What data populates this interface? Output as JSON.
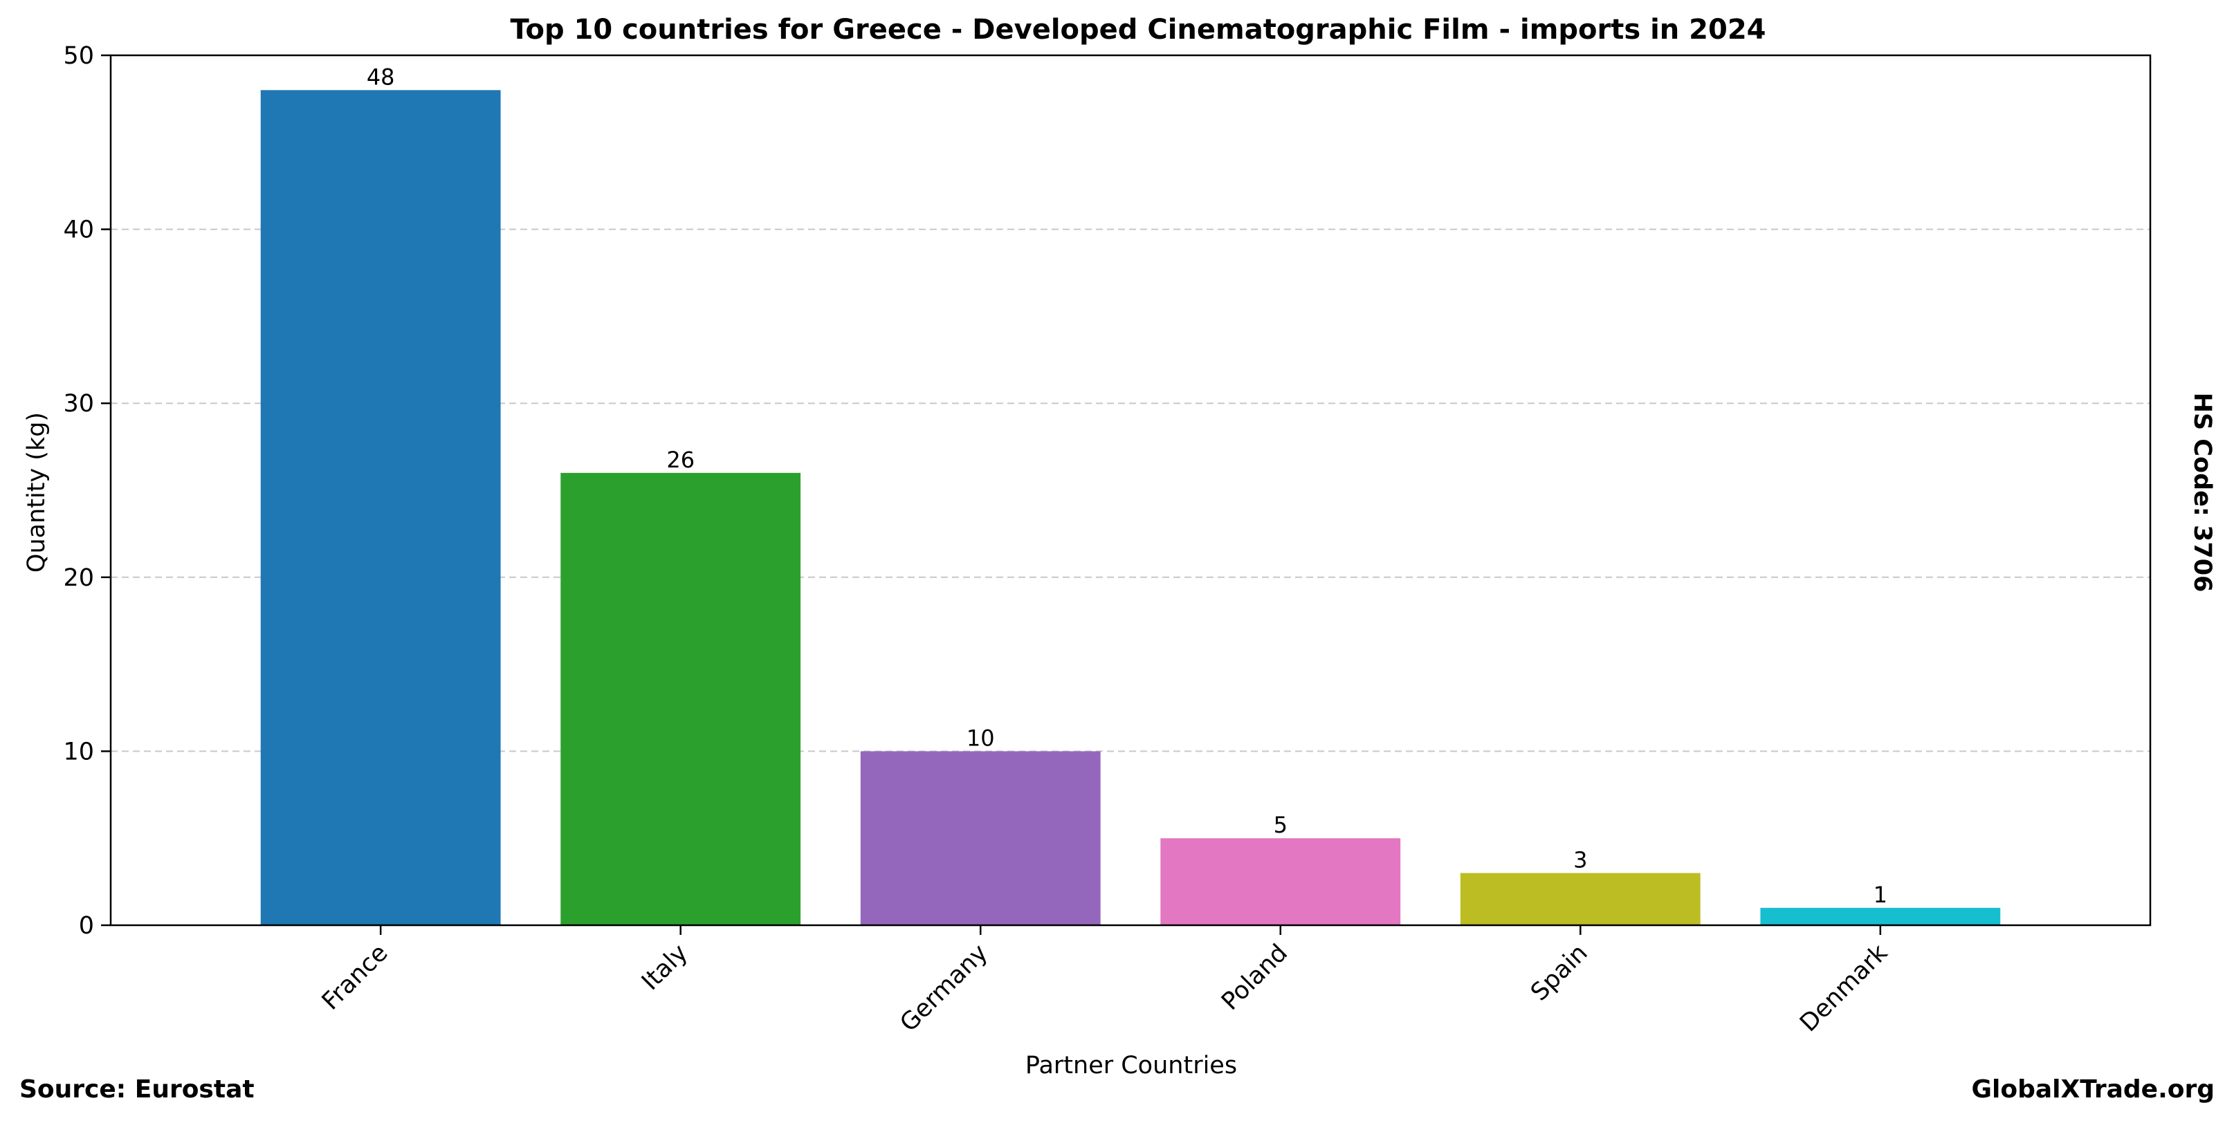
{
  "chart_data": {
    "type": "bar",
    "title": "Top 10 countries for Greece - Developed Cinematographic Film - imports in 2024",
    "xlabel": "Partner Countries",
    "ylabel": "Quantity (kg)",
    "categories": [
      "France",
      "Italy",
      "Germany",
      "Poland",
      "Spain",
      "Denmark"
    ],
    "values": [
      48,
      26,
      10,
      5,
      3,
      1
    ],
    "data_labels": [
      "48",
      "26",
      "10",
      "5",
      "3",
      "1"
    ],
    "colors": [
      "#1f77b4",
      "#2ca02c",
      "#9467bd",
      "#e377c2",
      "#bcbd22",
      "#17becf"
    ],
    "ylim": [
      0,
      50
    ],
    "yticks": [
      0,
      10,
      20,
      30,
      40,
      50
    ],
    "grid": "horizontal dashed",
    "side_note": "HS Code: 3706"
  },
  "footer": {
    "source": "Source: Eurostat",
    "brand": "GlobalXTrade.org"
  }
}
